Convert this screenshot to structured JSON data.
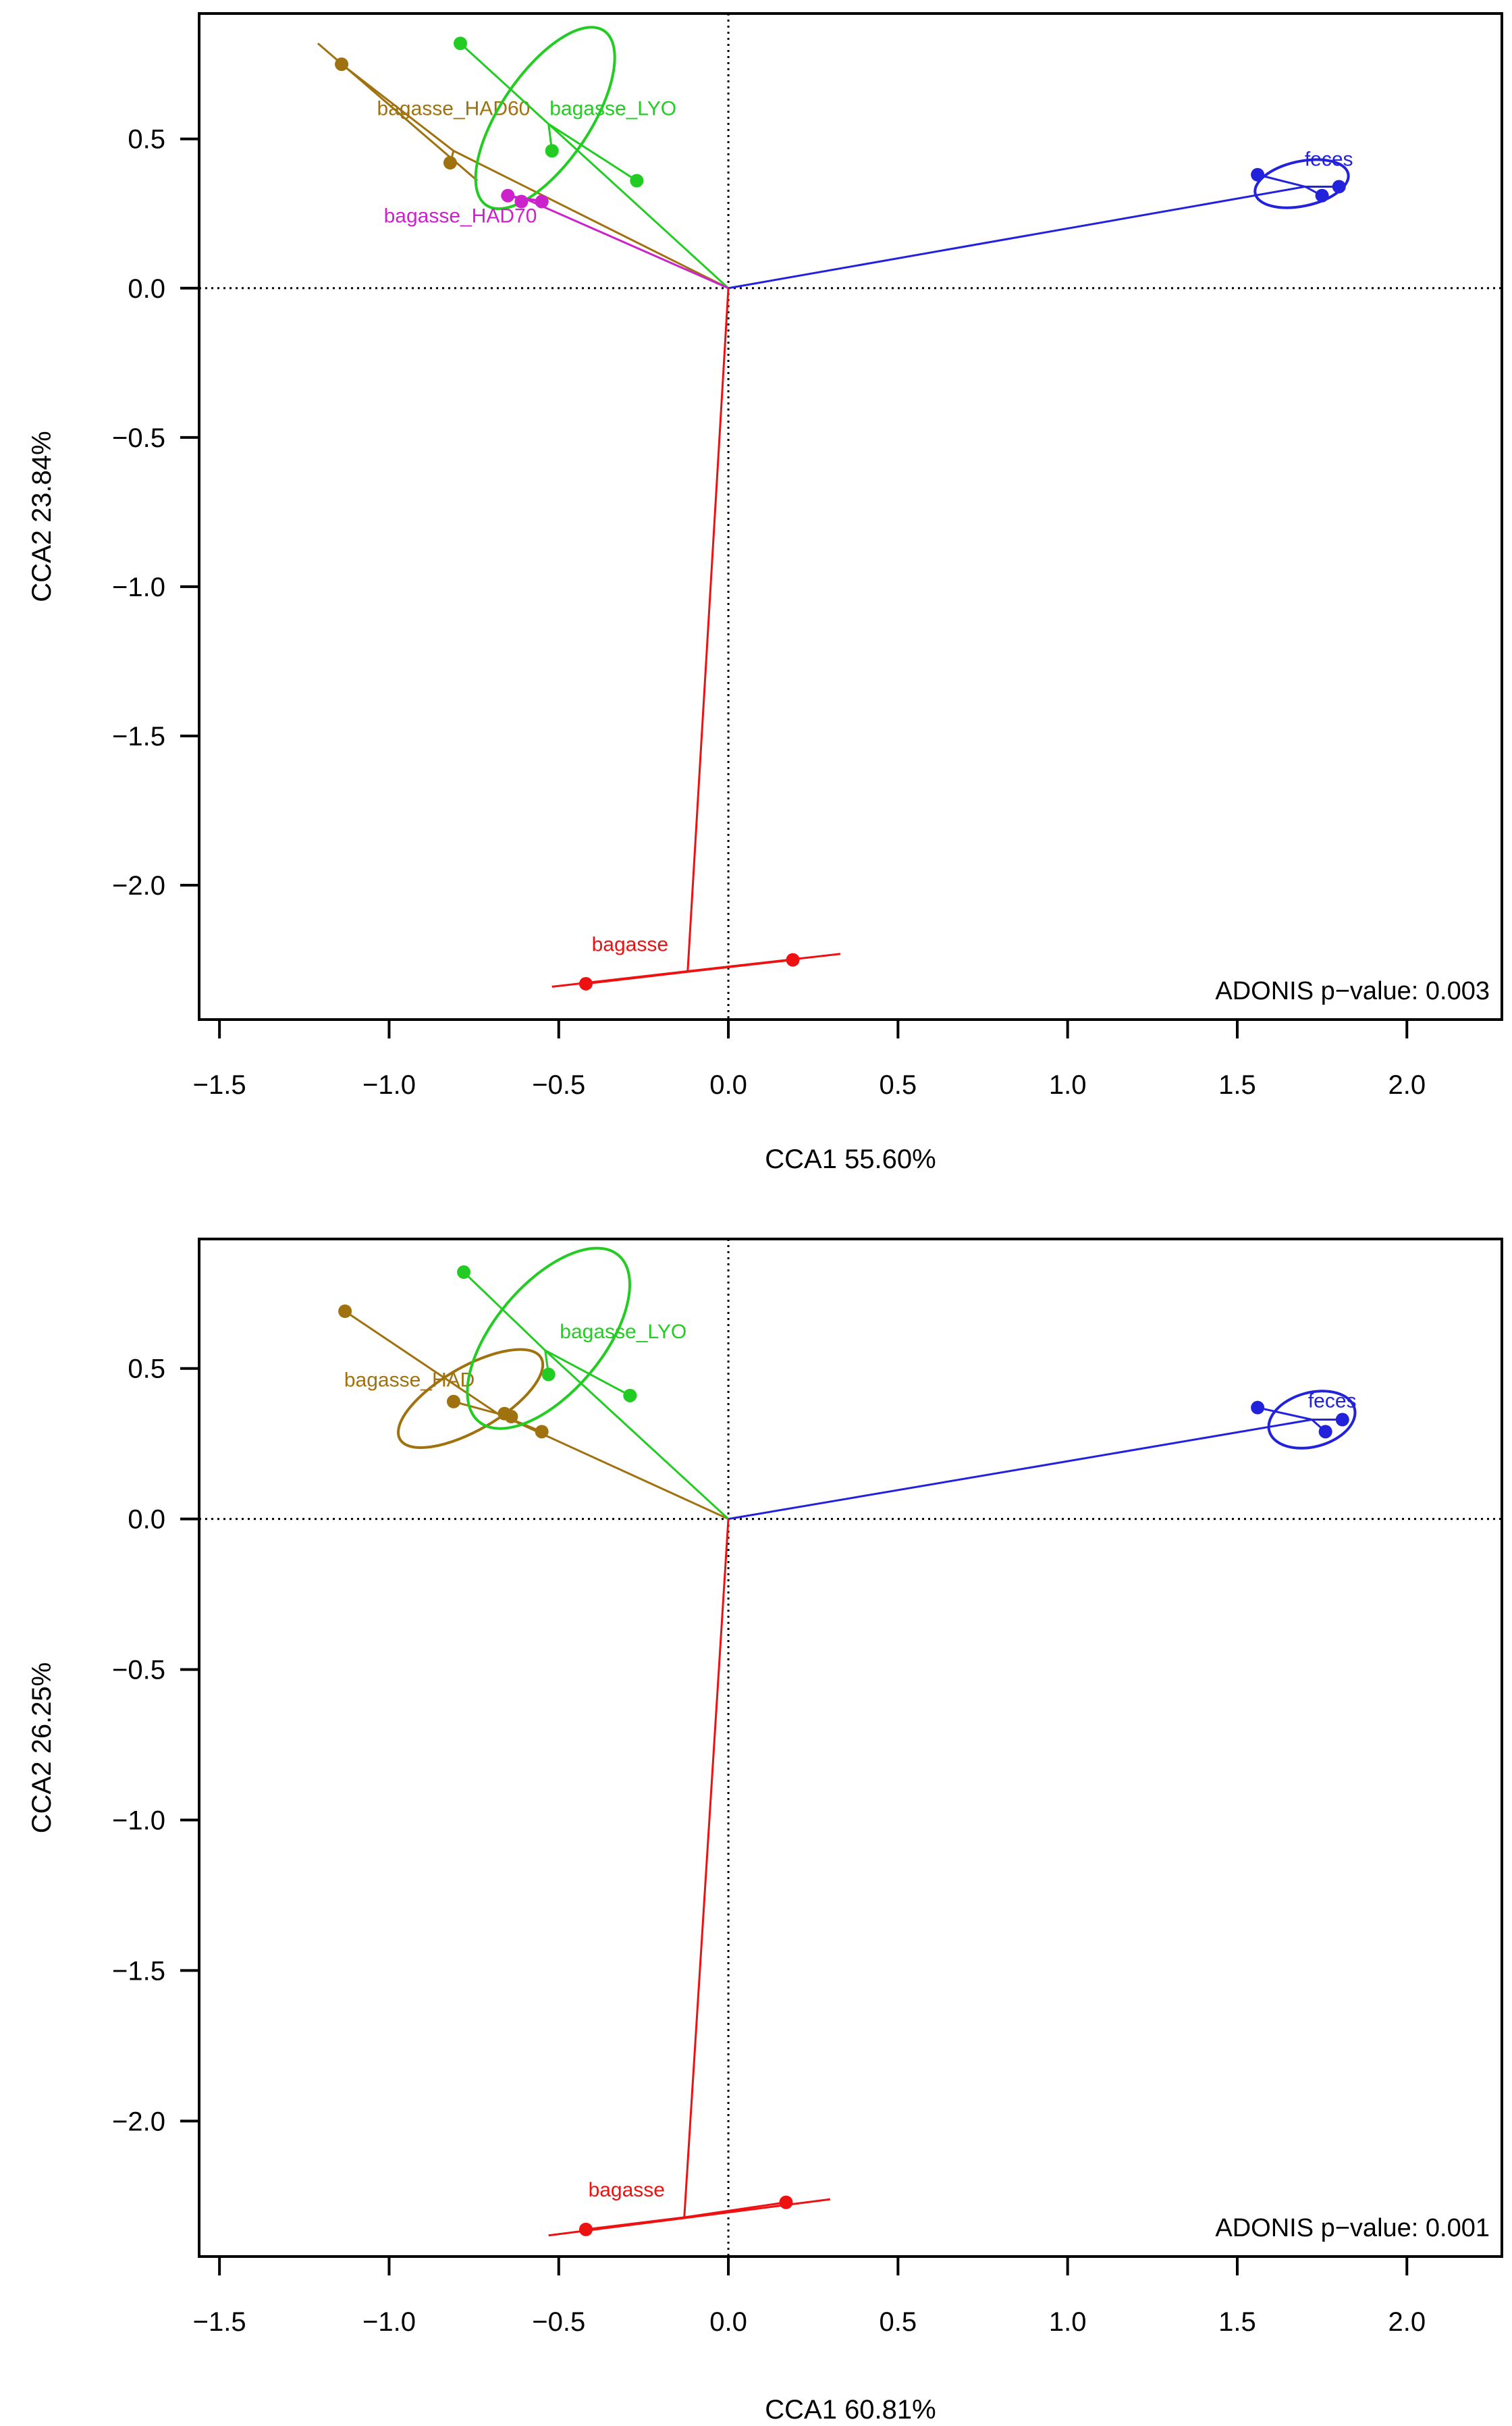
{
  "chart_data": [
    {
      "type": "scatter",
      "title": "",
      "xlabel": "CCA1 55.60%",
      "ylabel": "CCA2 23.84%",
      "xlim": [
        -1.56,
        2.28
      ],
      "ylim": [
        -2.45,
        0.92
      ],
      "xticks": [
        -1.5,
        -1.0,
        -0.5,
        0.0,
        0.5,
        1.0,
        1.5,
        2.0
      ],
      "yticks": [
        -2.0,
        -1.5,
        -1.0,
        -0.5,
        0.0,
        0.5
      ],
      "xtick_labels": [
        "−1.5",
        "−1.0",
        "−0.5",
        "0.0",
        "0.5",
        "1.0",
        "1.5",
        "2.0"
      ],
      "ytick_labels": [
        "−2.0",
        "−1.5",
        "−1.0",
        "−0.5",
        "0.0",
        "0.5"
      ],
      "annotation": "ADONIS p−value: 0.003",
      "series": [
        {
          "name": "bagasse_HAD60",
          "color": "#A0720F",
          "points": [
            [
              -1.14,
              0.75
            ],
            [
              -0.82,
              0.42
            ]
          ],
          "centroid": [
            -0.81,
            0.46
          ],
          "label_pos": [
            -0.81,
            0.58
          ],
          "ellipse": {
            "type": "line",
            "from": [
              -1.21,
              0.82
            ],
            "to": [
              -0.74,
              0.36
            ]
          }
        },
        {
          "name": "bagasse_LYO",
          "color": "#22CC22",
          "points": [
            [
              -0.79,
              0.82
            ],
            [
              -0.52,
              0.46
            ],
            [
              -0.27,
              0.36
            ]
          ],
          "centroid": [
            -0.53,
            0.55
          ],
          "label_pos": [
            -0.34,
            0.58
          ],
          "ellipse": {
            "type": "ellipse",
            "cx": -0.54,
            "cy": 0.57,
            "rx": 0.31,
            "ry": 0.05,
            "angle": -56
          }
        },
        {
          "name": "bagasse_HAD70",
          "color": "#CC22CC",
          "points": [
            [
              -0.65,
              0.31
            ],
            [
              -0.61,
              0.29
            ],
            [
              -0.55,
              0.29
            ]
          ],
          "centroid": [
            -0.6,
            0.3
          ],
          "label_pos": [
            -0.79,
            0.22
          ],
          "ellipse": {
            "type": "line",
            "from": [
              -0.67,
              0.31
            ],
            "to": [
              -0.53,
              0.29
            ]
          }
        },
        {
          "name": "feces",
          "color": "#2222DD",
          "points": [
            [
              1.56,
              0.38
            ],
            [
              1.75,
              0.31
            ],
            [
              1.8,
              0.34
            ]
          ],
          "centroid": [
            1.7,
            0.34
          ],
          "label_pos": [
            1.77,
            0.41
          ],
          "ellipse": {
            "type": "ellipse",
            "cx": 1.69,
            "cy": 0.35,
            "rx": 0.14,
            "ry": 0.025,
            "angle": -12
          }
        },
        {
          "name": "bagasse",
          "color": "#EE1111",
          "points": [
            [
              -0.42,
              -2.33
            ],
            [
              0.19,
              -2.25
            ]
          ],
          "centroid": [
            -0.12,
            -2.29
          ],
          "label_pos": [
            -0.29,
            -2.22
          ],
          "ellipse": {
            "type": "line",
            "from": [
              -0.52,
              -2.34
            ],
            "to": [
              0.33,
              -2.23
            ]
          }
        }
      ]
    },
    {
      "type": "scatter",
      "title": "",
      "xlabel": "CCA1 60.81%",
      "ylabel": "CCA2 26.25%",
      "xlim": [
        -1.56,
        2.28
      ],
      "ylim": [
        -2.45,
        0.93
      ],
      "xticks": [
        -1.5,
        -1.0,
        -0.5,
        0.0,
        0.5,
        1.0,
        1.5,
        2.0
      ],
      "yticks": [
        -2.0,
        -1.5,
        -1.0,
        -0.5,
        0.0,
        0.5
      ],
      "xtick_labels": [
        "−1.5",
        "−1.0",
        "−0.5",
        "0.0",
        "0.5",
        "1.0",
        "1.5",
        "2.0"
      ],
      "ytick_labels": [
        "−2.0",
        "−1.5",
        "−1.0",
        "−0.5",
        "0.0",
        "0.5"
      ],
      "annotation": "ADONIS p−value: 0.001",
      "series": [
        {
          "name": "bagasse_HAD",
          "color": "#A0720F",
          "points": [
            [
              -1.13,
              0.69
            ],
            [
              -0.81,
              0.39
            ],
            [
              -0.66,
              0.35
            ],
            [
              -0.64,
              0.34
            ],
            [
              -0.55,
              0.29
            ]
          ],
          "centroid": [
            -0.68,
            0.35
          ],
          "label_pos": [
            -0.94,
            0.44
          ],
          "ellipse": {
            "type": "ellipse",
            "cx": -0.76,
            "cy": 0.4,
            "rx": 0.24,
            "ry": 0.035,
            "angle": -30
          }
        },
        {
          "name": "bagasse_LYO",
          "color": "#22CC22",
          "points": [
            [
              -0.78,
              0.82
            ],
            [
              -0.53,
              0.48
            ],
            [
              -0.29,
              0.41
            ]
          ],
          "centroid": [
            -0.54,
            0.56
          ],
          "label_pos": [
            -0.31,
            0.6
          ],
          "ellipse": {
            "type": "ellipse",
            "cx": -0.53,
            "cy": 0.6,
            "rx": 0.32,
            "ry": 0.06,
            "angle": -50
          }
        },
        {
          "name": "feces",
          "color": "#2222DD",
          "points": [
            [
              1.56,
              0.37
            ],
            [
              1.76,
              0.29
            ],
            [
              1.81,
              0.33
            ]
          ],
          "centroid": [
            1.72,
            0.33
          ],
          "label_pos": [
            1.78,
            0.37
          ],
          "ellipse": {
            "type": "ellipse",
            "cx": 1.72,
            "cy": 0.33,
            "rx": 0.13,
            "ry": 0.03,
            "angle": -15
          }
        },
        {
          "name": "bagasse",
          "color": "#EE1111",
          "points": [
            [
              -0.42,
              -2.36
            ],
            [
              0.17,
              -2.27
            ]
          ],
          "centroid": [
            -0.13,
            -2.32
          ],
          "label_pos": [
            -0.3,
            -2.25
          ],
          "ellipse": {
            "type": "line",
            "from": [
              -0.53,
              -2.38
            ],
            "to": [
              0.3,
              -2.26
            ]
          }
        }
      ]
    }
  ]
}
